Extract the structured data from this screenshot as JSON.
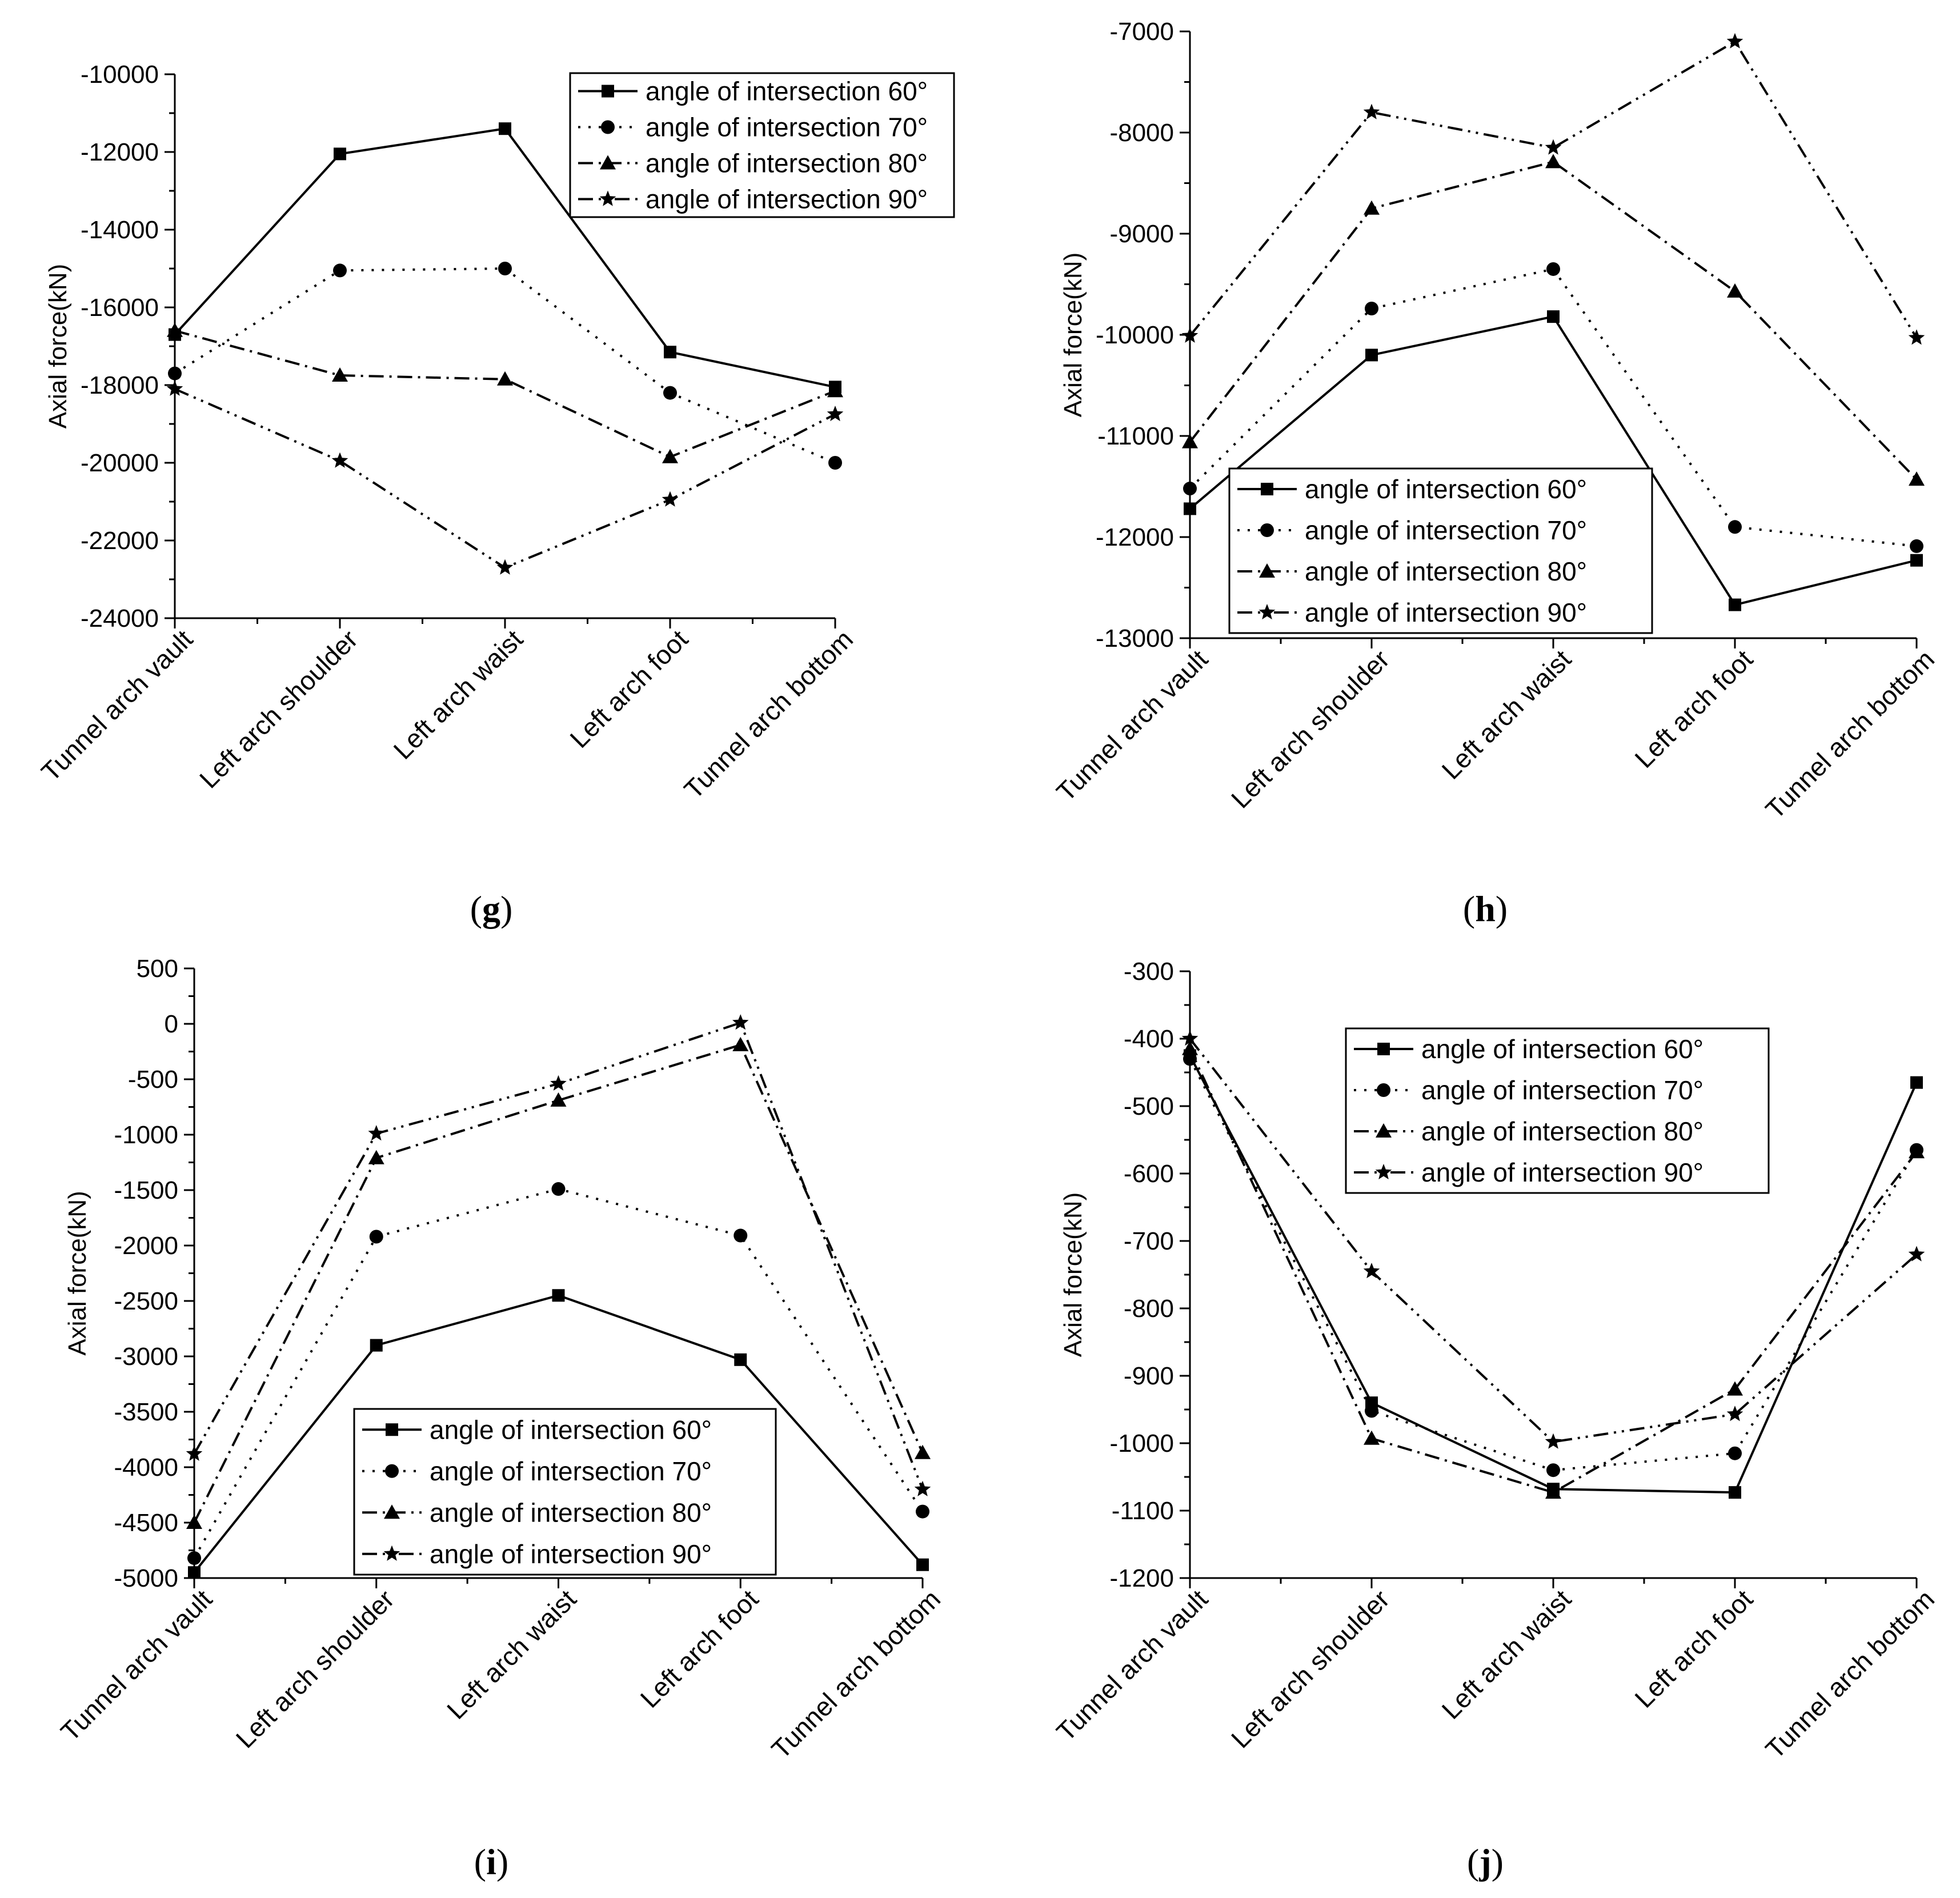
{
  "series_styles": {
    "angle of intersection 60°": {
      "dash": "",
      "marker": "square"
    },
    "angle of intersection 70°": {
      "dash": "4,14",
      "marker": "circle"
    },
    "angle of intersection 80°": {
      "dash": "26,10,4,10",
      "marker": "triangle"
    },
    "angle of intersection 90°": {
      "dash": "26,10,4,10,4,10",
      "marker": "star"
    }
  },
  "chart_data": [
    {
      "panel": "g",
      "type": "line",
      "ylabel": "Axial force(kN)",
      "ylim": [
        -24000,
        -10000
      ],
      "yticks": [
        -24000,
        -22000,
        -20000,
        -18000,
        -16000,
        -14000,
        -12000,
        -10000
      ],
      "categories": [
        "Tunnel arch vault",
        "Left arch shoulder",
        "Left arch waist",
        "Left arch foot",
        "Tunnel arch bottom"
      ],
      "legend": "top-right",
      "series": [
        {
          "name": "angle of intersection 60°",
          "values": [
            -16700,
            -12050,
            -11400,
            -17150,
            -18050
          ]
        },
        {
          "name": "angle of intersection 70°",
          "values": [
            -17700,
            -15050,
            -15000,
            -18200,
            -20000
          ]
        },
        {
          "name": "angle of intersection 80°",
          "values": [
            -16600,
            -17750,
            -17850,
            -19850,
            -18150
          ]
        },
        {
          "name": "angle of intersection 90°",
          "values": [
            -18100,
            -19950,
            -22700,
            -20950,
            -18750
          ]
        }
      ]
    },
    {
      "panel": "h",
      "type": "line",
      "ylabel": "Axial force(kN)",
      "ylim": [
        -13000,
        -7000
      ],
      "yticks": [
        -13000,
        -12000,
        -11000,
        -10000,
        -9000,
        -8000,
        -7000
      ],
      "categories": [
        "Tunnel arch vault",
        "Left arch shoulder",
        "Left arch waist",
        "Left arch foot",
        "Tunnel arch bottom"
      ],
      "legend": "bottom-left",
      "series": [
        {
          "name": "angle of intersection 60°",
          "values": [
            -11720,
            -10200,
            -9820,
            -12670,
            -12230
          ]
        },
        {
          "name": "angle of intersection 70°",
          "values": [
            -11520,
            -9740,
            -9350,
            -11900,
            -12090
          ]
        },
        {
          "name": "angle of intersection 80°",
          "values": [
            -11060,
            -8750,
            -8290,
            -9570,
            -11430
          ]
        },
        {
          "name": "angle of intersection 90°",
          "values": [
            -10010,
            -7800,
            -8150,
            -7100,
            -10030
          ]
        }
      ]
    },
    {
      "panel": "i",
      "type": "line",
      "ylabel": "Axial force(kN)",
      "ylim": [
        -5000,
        500
      ],
      "yticks": [
        -5000,
        -4500,
        -4000,
        -3500,
        -3000,
        -2500,
        -2000,
        -1500,
        -1000,
        -500,
        0,
        500
      ],
      "categories": [
        "Tunnel arch vault",
        "Left arch shoulder",
        "Left arch waist",
        "Left arch foot",
        "Tunnel arch bottom"
      ],
      "legend": "bottom-right",
      "series": [
        {
          "name": "angle of intersection 60°",
          "values": [
            -4950,
            -2900,
            -2450,
            -3030,
            -4880
          ]
        },
        {
          "name": "angle of intersection 70°",
          "values": [
            -4820,
            -1920,
            -1490,
            -1910,
            -4400
          ]
        },
        {
          "name": "angle of intersection 80°",
          "values": [
            -4500,
            -1210,
            -690,
            -190,
            -3870
          ]
        },
        {
          "name": "angle of intersection 90°",
          "values": [
            -3880,
            -990,
            -540,
            10,
            -4200
          ]
        }
      ]
    },
    {
      "panel": "j",
      "type": "line",
      "ylabel": "Axial force(kN)",
      "ylim": [
        -1200,
        -300
      ],
      "yticks": [
        -1200,
        -1100,
        -1000,
        -900,
        -800,
        -700,
        -600,
        -500,
        -400,
        -300
      ],
      "categories": [
        "Tunnel arch vault",
        "Left arch shoulder",
        "Left arch waist",
        "Left arch foot",
        "Tunnel arch bottom"
      ],
      "legend": "top-center",
      "series": [
        {
          "name": "angle of intersection 60°",
          "values": [
            -425,
            -940,
            -1068,
            -1073,
            -465
          ]
        },
        {
          "name": "angle of intersection 70°",
          "values": [
            -430,
            -952,
            -1040,
            -1015,
            -565
          ]
        },
        {
          "name": "angle of intersection 80°",
          "values": [
            -415,
            -993,
            -1073,
            -920,
            -568
          ]
        },
        {
          "name": "angle of intersection 90°",
          "values": [
            -400,
            -745,
            -998,
            -957,
            -720
          ]
        }
      ]
    }
  ]
}
